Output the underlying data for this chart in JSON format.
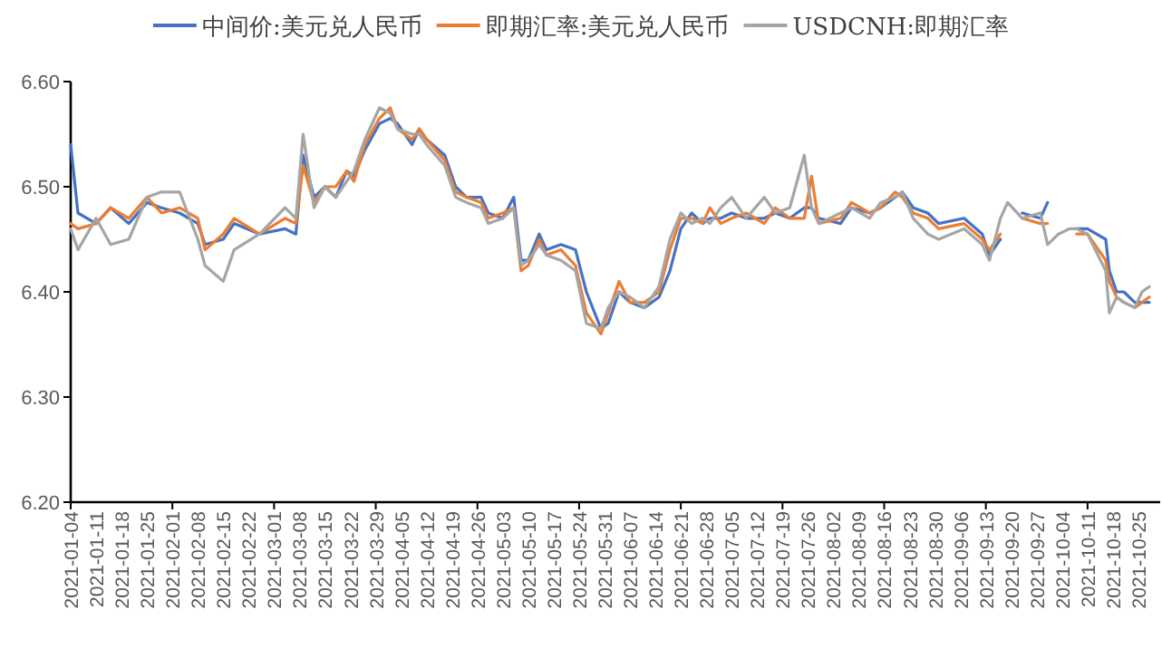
{
  "chart_data": {
    "type": "line",
    "legend": "top",
    "grid": false,
    "marker": "none",
    "line_style": "solid",
    "x": [
      "2021-01-04",
      "2021-01-06",
      "2021-01-11",
      "2021-01-15",
      "2021-01-20",
      "2021-01-25",
      "2021-01-29",
      "2021-02-03",
      "2021-02-08",
      "2021-02-10",
      "2021-02-15",
      "2021-02-18",
      "2021-02-25",
      "2021-03-04",
      "2021-03-07",
      "2021-03-09",
      "2021-03-12",
      "2021-03-15",
      "2021-03-18",
      "2021-03-21",
      "2021-03-23",
      "2021-03-26",
      "2021-03-30",
      "2021-04-02",
      "2021-04-04",
      "2021-04-08",
      "2021-04-10",
      "2021-04-12",
      "2021-04-17",
      "2021-04-20",
      "2021-04-23",
      "2021-04-27",
      "2021-04-29",
      "2021-05-03",
      "2021-05-06",
      "2021-05-08",
      "2021-05-10",
      "2021-05-13",
      "2021-05-15",
      "2021-05-19",
      "2021-05-23",
      "2021-05-26",
      "2021-05-30",
      "2021-06-01",
      "2021-06-04",
      "2021-06-07",
      "2021-06-11",
      "2021-06-15",
      "2021-06-18",
      "2021-06-21",
      "2021-06-24",
      "2021-06-27",
      "2021-06-29",
      "2021-07-02",
      "2021-07-05",
      "2021-07-09",
      "2021-07-14",
      "2021-07-17",
      "2021-07-21",
      "2021-07-25",
      "2021-07-27",
      "2021-07-29",
      "2021-08-04",
      "2021-08-07",
      "2021-08-12",
      "2021-08-15",
      "2021-08-19",
      "2021-08-21",
      "2021-08-24",
      "2021-08-28",
      "2021-08-31",
      "2021-09-07",
      "2021-09-12",
      "2021-09-14",
      "2021-09-17",
      "2021-09-19",
      "2021-09-23",
      "2021-09-28",
      "2021-09-30",
      "2021-10-03",
      "2021-10-06",
      "2021-10-08",
      "2021-10-11",
      "2021-10-16",
      "2021-10-17",
      "2021-10-19",
      "2021-10-21",
      "2021-10-24",
      "2021-10-26",
      "2021-10-28"
    ],
    "series": [
      {
        "name": "中间价:美元兑人民币",
        "color": "#4472c4",
        "values": [
          6.54,
          6.475,
          6.465,
          6.48,
          6.465,
          6.485,
          6.48,
          6.475,
          6.465,
          6.445,
          6.45,
          6.465,
          6.455,
          6.46,
          6.455,
          6.53,
          6.49,
          6.5,
          6.49,
          6.515,
          6.51,
          6.535,
          6.56,
          6.565,
          6.56,
          6.54,
          6.555,
          6.545,
          6.53,
          6.5,
          6.49,
          6.49,
          6.475,
          6.47,
          6.49,
          6.43,
          6.43,
          6.455,
          6.44,
          6.445,
          6.44,
          6.4,
          6.365,
          6.37,
          6.4,
          6.39,
          6.385,
          6.395,
          6.42,
          6.46,
          6.475,
          6.465,
          6.47,
          6.47,
          6.475,
          6.47,
          6.47,
          6.475,
          6.47,
          6.48,
          6.48,
          6.47,
          6.465,
          6.48,
          6.475,
          6.48,
          6.49,
          6.495,
          6.48,
          6.475,
          6.465,
          6.47,
          6.455,
          6.435,
          6.45,
          null,
          6.475,
          6.47,
          6.485,
          null,
          null,
          6.46,
          6.46,
          6.45,
          6.42,
          6.4,
          6.4,
          6.39,
          6.39,
          6.39
        ]
      },
      {
        "name": "即期汇率:美元兑人民币",
        "color": "#ed7d31",
        "values": [
          6.465,
          6.46,
          6.465,
          6.48,
          6.47,
          6.49,
          6.475,
          6.48,
          6.47,
          6.44,
          6.455,
          6.47,
          6.455,
          6.47,
          6.465,
          6.52,
          6.485,
          6.5,
          6.5,
          6.515,
          6.505,
          6.54,
          6.565,
          6.575,
          6.555,
          6.545,
          6.555,
          6.545,
          6.525,
          6.495,
          6.49,
          6.485,
          6.47,
          6.475,
          6.48,
          6.42,
          6.425,
          6.45,
          6.435,
          6.44,
          6.425,
          6.38,
          6.36,
          6.38,
          6.41,
          6.39,
          6.39,
          6.4,
          6.44,
          6.47,
          6.47,
          6.465,
          6.48,
          6.465,
          6.47,
          6.475,
          6.465,
          6.48,
          6.47,
          6.47,
          6.51,
          6.465,
          6.47,
          6.485,
          6.475,
          6.48,
          6.495,
          6.49,
          6.475,
          6.47,
          6.46,
          6.465,
          6.45,
          6.44,
          6.455,
          null,
          6.47,
          6.465,
          6.465,
          null,
          null,
          6.455,
          6.455,
          6.43,
          6.41,
          6.395,
          6.39,
          6.385,
          6.39,
          6.395
        ]
      },
      {
        "name": "USDCNH:即期汇率",
        "color": "#a5a5a5",
        "values": [
          6.46,
          6.44,
          6.47,
          6.445,
          6.45,
          6.49,
          6.495,
          6.495,
          6.45,
          6.425,
          6.41,
          6.44,
          6.455,
          6.48,
          6.47,
          6.55,
          6.48,
          6.5,
          6.49,
          6.505,
          6.515,
          6.545,
          6.575,
          6.57,
          6.555,
          6.55,
          6.55,
          6.54,
          6.52,
          6.49,
          6.485,
          6.48,
          6.465,
          6.47,
          6.48,
          6.425,
          6.43,
          6.445,
          6.435,
          6.43,
          6.42,
          6.37,
          6.365,
          6.385,
          6.4,
          6.395,
          6.385,
          6.405,
          6.45,
          6.475,
          6.465,
          6.47,
          6.465,
          6.48,
          6.49,
          6.47,
          6.49,
          6.475,
          6.48,
          6.53,
          6.48,
          6.465,
          6.475,
          6.48,
          6.47,
          6.485,
          6.49,
          6.495,
          6.47,
          6.455,
          6.45,
          6.46,
          6.445,
          6.43,
          6.47,
          6.485,
          6.47,
          6.475,
          6.445,
          6.455,
          6.46,
          6.46,
          6.455,
          6.42,
          6.38,
          6.395,
          6.39,
          6.385,
          6.4,
          6.405
        ]
      }
    ],
    "xlim": [
      "2021-01-04",
      "2021-10-31"
    ],
    "xticks": [
      "2021-01-04",
      "2021-01-11",
      "2021-01-18",
      "2021-01-25",
      "2021-02-01",
      "2021-02-08",
      "2021-02-15",
      "2021-02-22",
      "2021-03-01",
      "2021-03-08",
      "2021-03-15",
      "2021-03-22",
      "2021-03-29",
      "2021-04-05",
      "2021-04-12",
      "2021-04-19",
      "2021-04-26",
      "2021-05-03",
      "2021-05-10",
      "2021-05-17",
      "2021-05-24",
      "2021-05-31",
      "2021-06-07",
      "2021-06-14",
      "2021-06-21",
      "2021-06-28",
      "2021-07-05",
      "2021-07-12",
      "2021-07-19",
      "2021-07-26",
      "2021-08-02",
      "2021-08-09",
      "2021-08-16",
      "2021-08-23",
      "2021-08-30",
      "2021-09-06",
      "2021-09-13",
      "2021-09-20",
      "2021-09-27",
      "2021-10-04",
      "2021-10-11",
      "2021-10-18",
      "2021-10-25"
    ],
    "ylim": [
      6.2,
      6.6
    ],
    "yticks": [
      {
        "value": 6.2,
        "label": "6.20"
      },
      {
        "value": 6.3,
        "label": "6.30"
      },
      {
        "value": 6.4,
        "label": "6.40"
      },
      {
        "value": 6.5,
        "label": "6.50"
      },
      {
        "value": 6.6,
        "label": "6.60"
      }
    ]
  }
}
